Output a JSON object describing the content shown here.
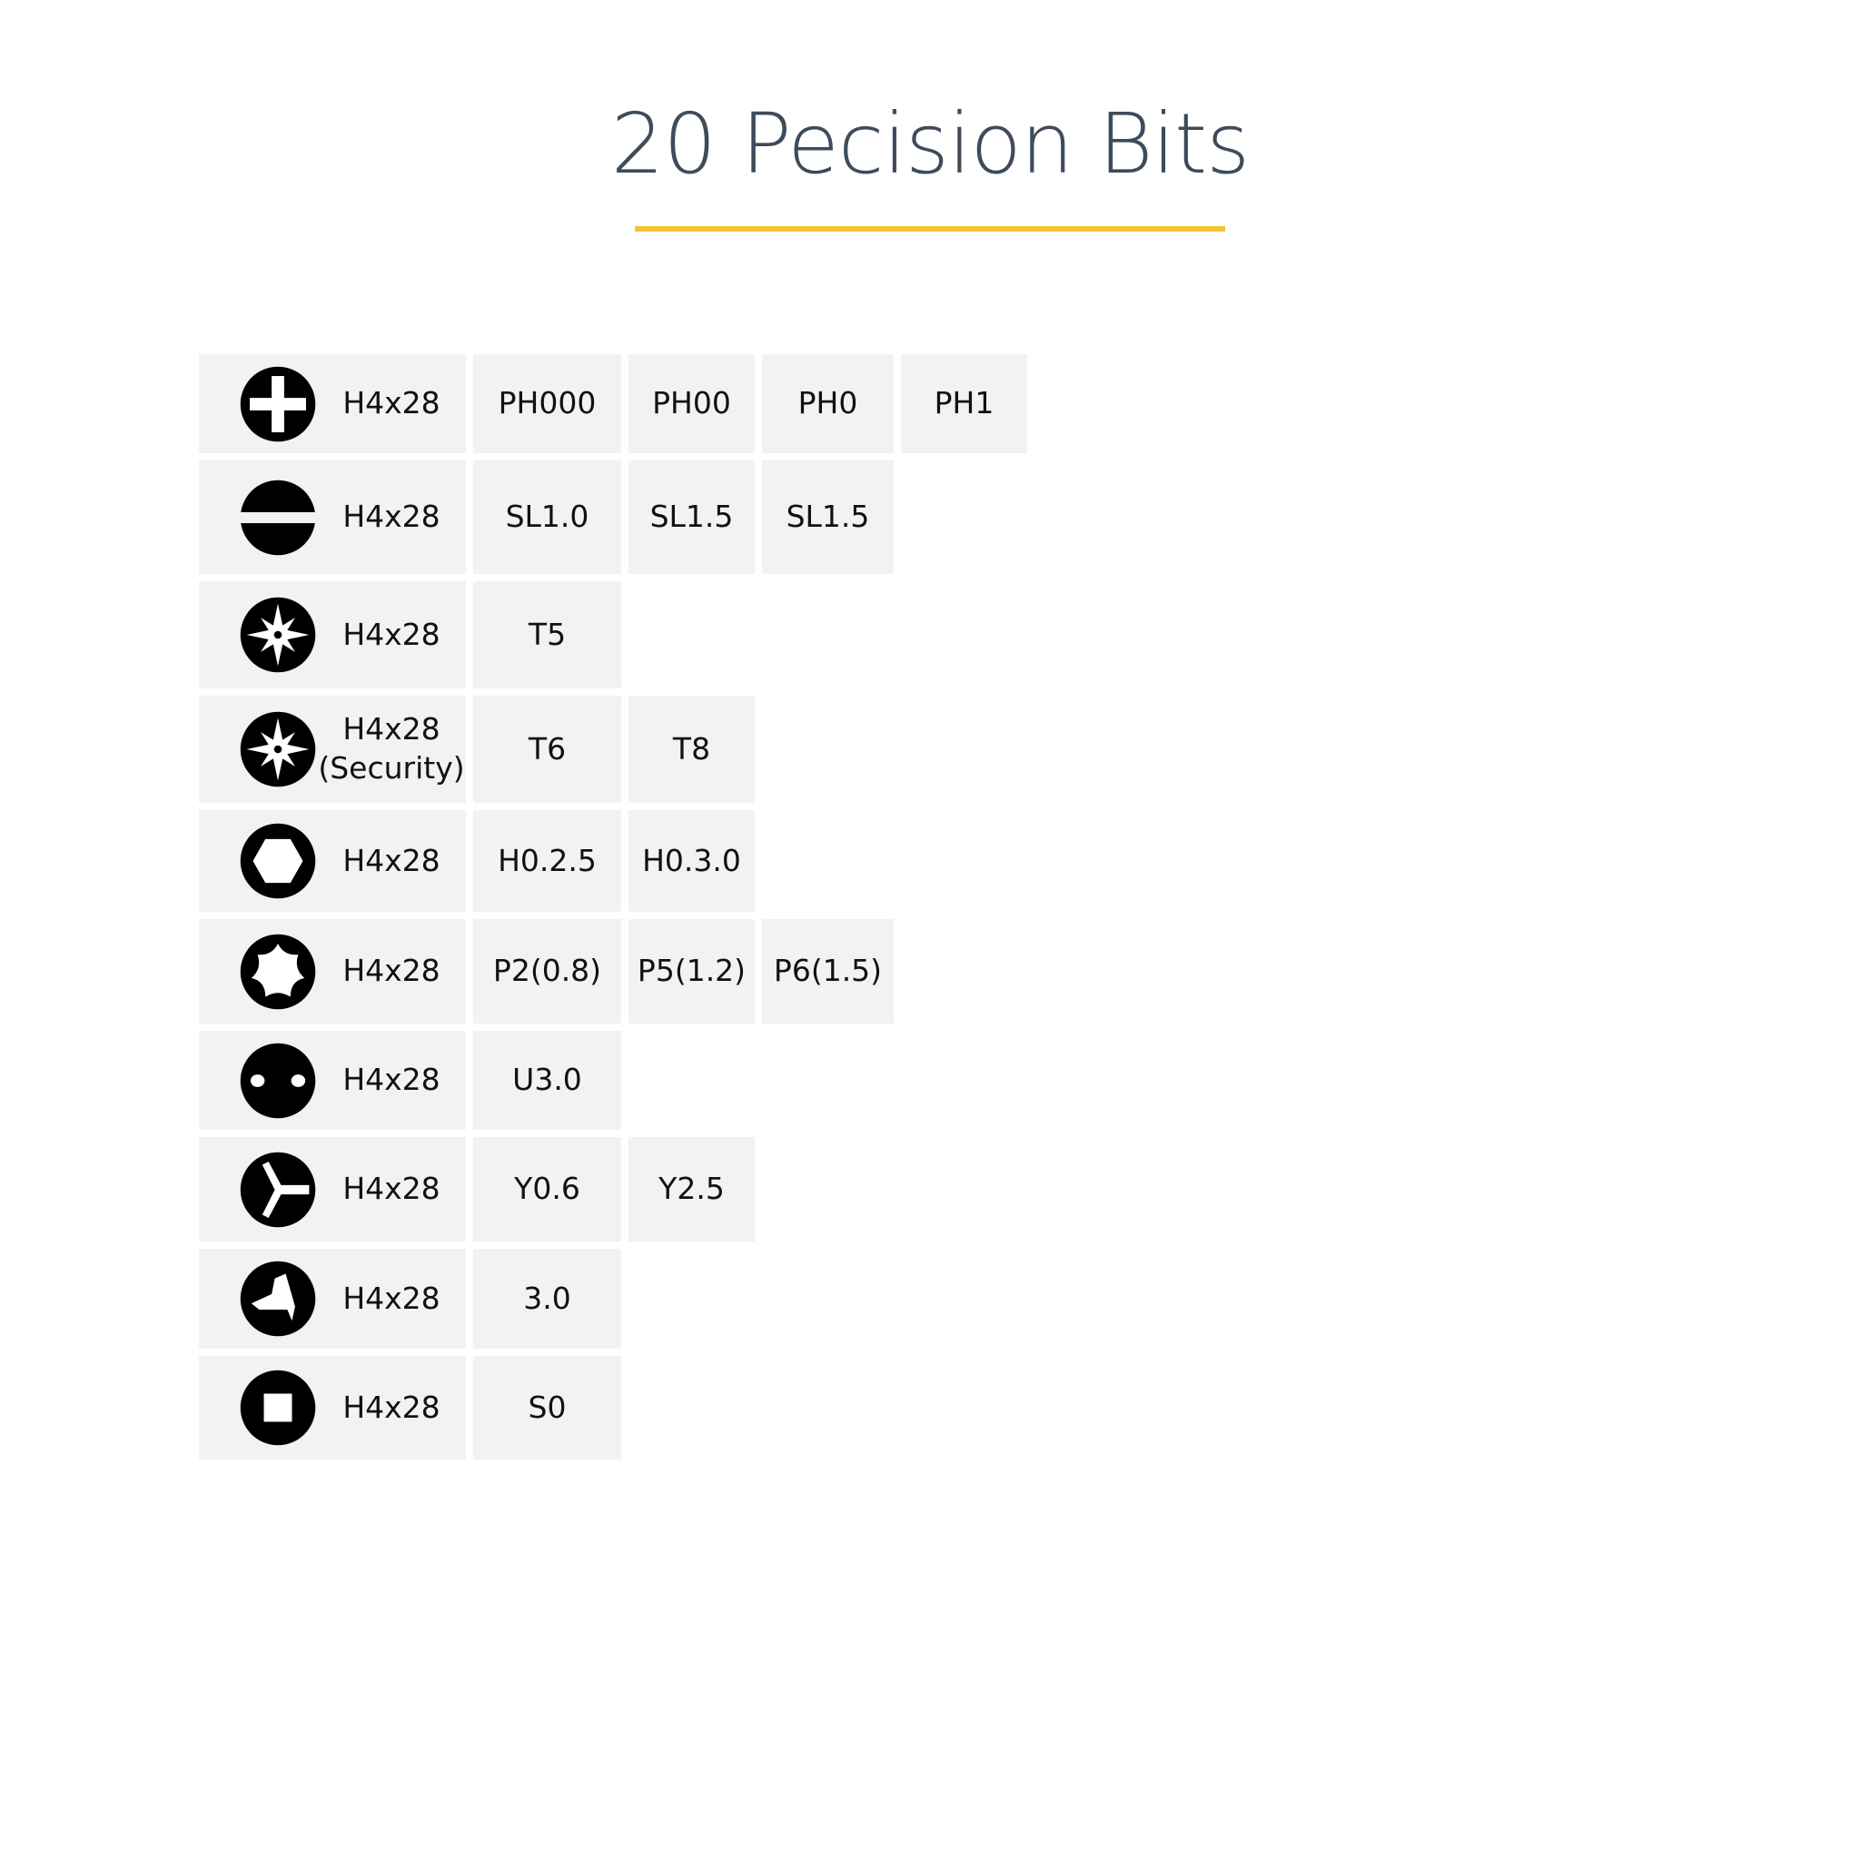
{
  "title": "20 Pecision Bits",
  "colors": {
    "accent": "#f5c230",
    "title": "#3f4b5b",
    "cell_bg": "#f2f2f2"
  },
  "rows": [
    {
      "icon": "phillips-icon",
      "label": "H4x28",
      "sizes": [
        "PH000",
        "PH00",
        "PH0",
        "PH1"
      ]
    },
    {
      "icon": "slotted-icon",
      "label": "H4x28",
      "sizes": [
        "SL1.0",
        "SL1.5",
        "SL1.5"
      ]
    },
    {
      "icon": "torx-icon",
      "label": "H4x28",
      "sizes": [
        "T5"
      ]
    },
    {
      "icon": "torx-security-icon",
      "label": "H4x28",
      "label2": "(Security)",
      "sizes": [
        "T6",
        "T8"
      ]
    },
    {
      "icon": "hex-icon",
      "label": "H4x28",
      "sizes": [
        "H0.2.5",
        "H0.3.0"
      ]
    },
    {
      "icon": "pentalobe-icon",
      "label": "H4x28",
      "sizes": [
        "P2(0.8)",
        "P5(1.2)",
        "P6(1.5)"
      ]
    },
    {
      "icon": "spanner-icon",
      "label": "H4x28",
      "sizes": [
        "U3.0"
      ]
    },
    {
      "icon": "tri-wing-icon",
      "label": "H4x28",
      "sizes": [
        "Y0.6",
        "Y2.5"
      ]
    },
    {
      "icon": "tri-point-icon",
      "label": "H4x28",
      "sizes": [
        "3.0"
      ]
    },
    {
      "icon": "square-icon",
      "label": "H4x28",
      "sizes": [
        "S0"
      ]
    }
  ]
}
